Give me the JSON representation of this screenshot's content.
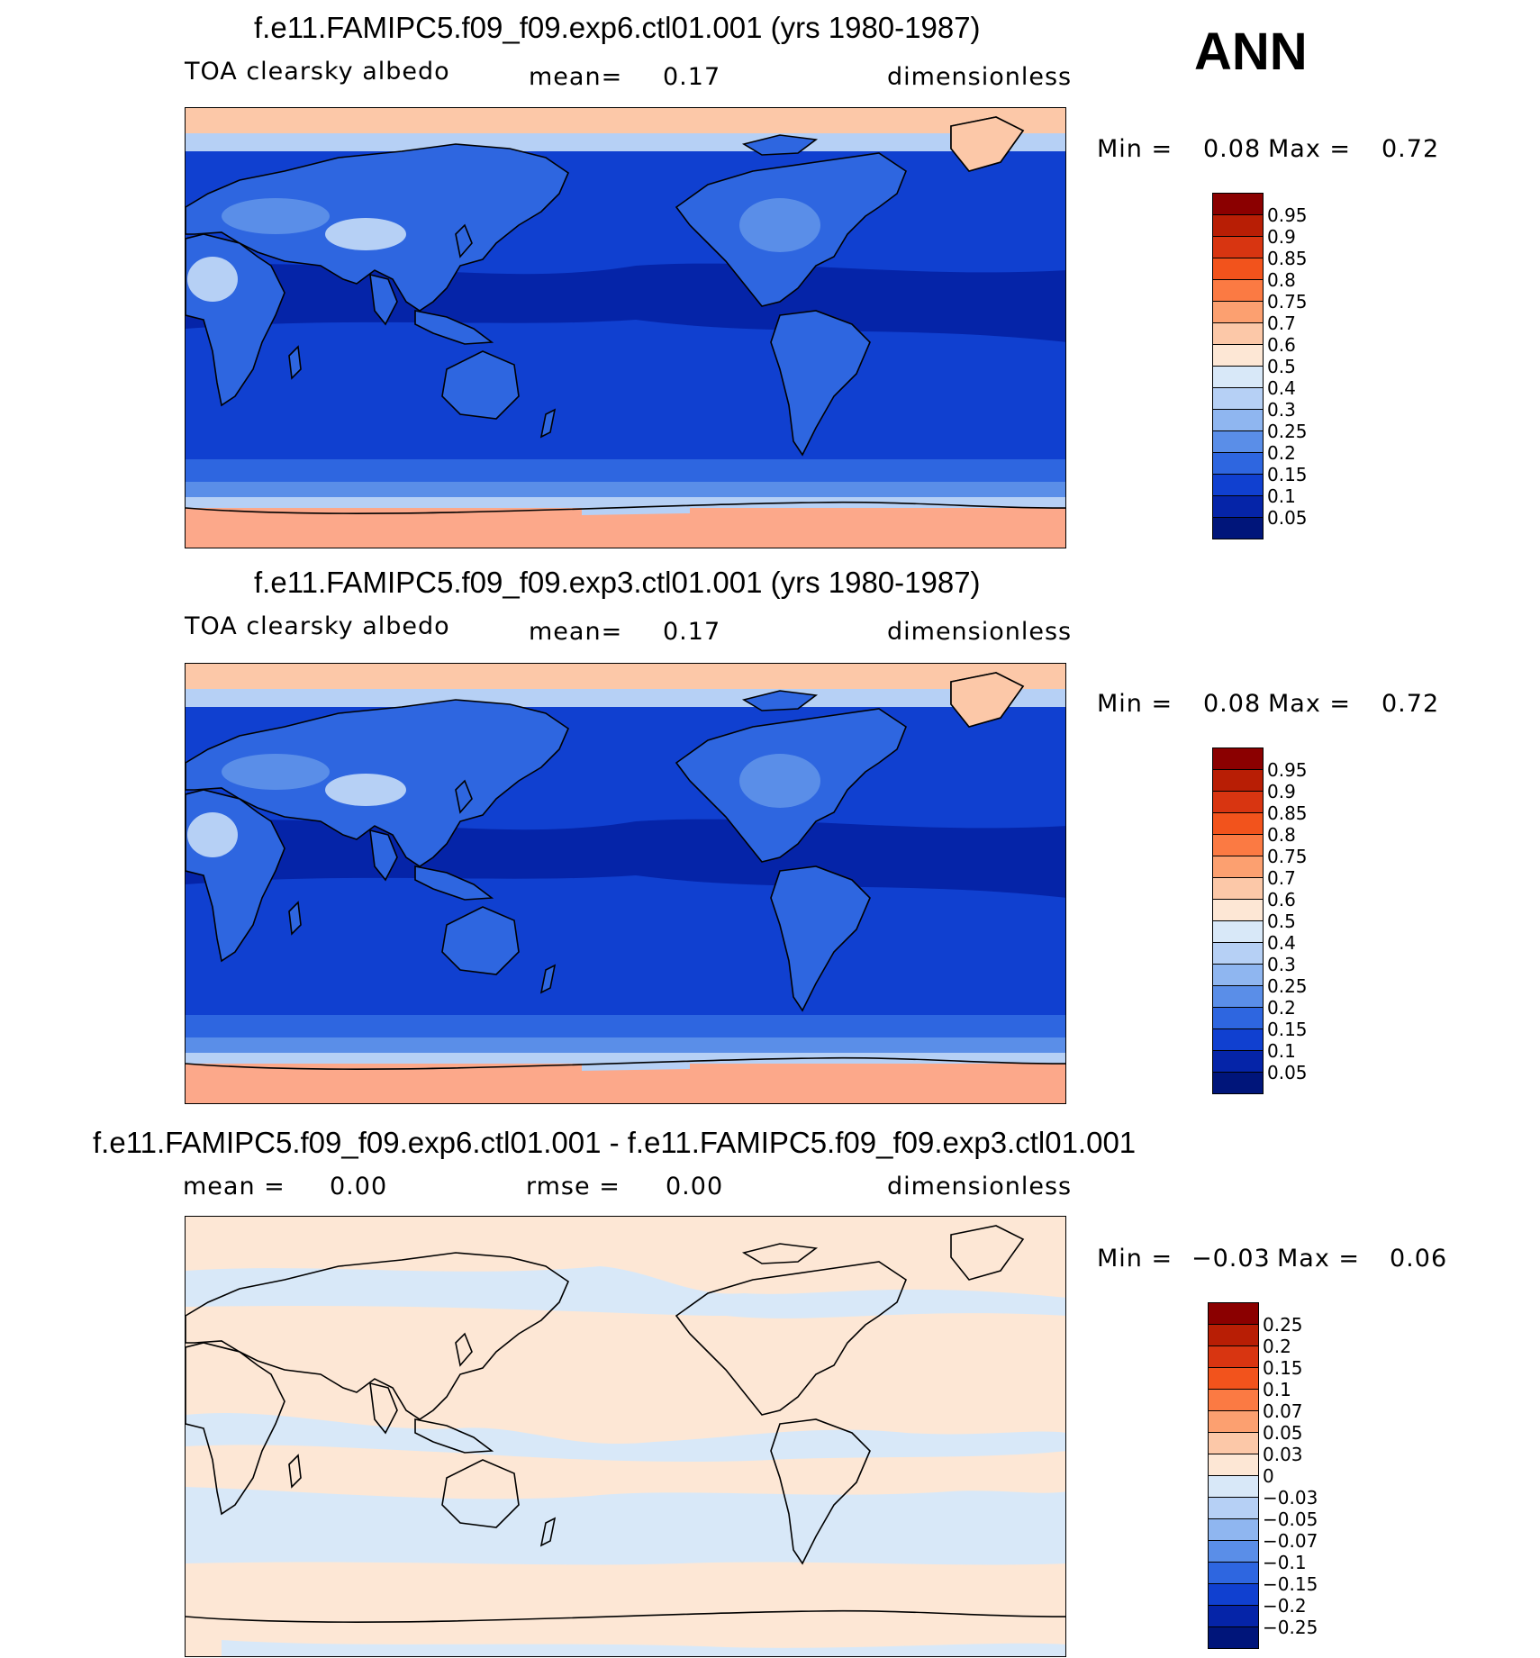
{
  "season": "ANN",
  "panels": [
    {
      "title": "f.e11.FAMIPC5.f09_f09.exp6.ctl01.001 (yrs 1980-1987)",
      "left_label": "TOA clearsky albedo",
      "mid_label": "mean=",
      "mid_value": "0.17",
      "right_label": "dimensionless",
      "min_label": "Min =",
      "min_value": "0.08",
      "max_label": "Max =",
      "max_value": "0.72",
      "colorbar_labels": [
        "0.95",
        "0.9",
        "0.85",
        "0.8",
        "0.75",
        "0.7",
        "0.6",
        "0.5",
        "0.4",
        "0.3",
        "0.25",
        "0.2",
        "0.15",
        "0.1",
        "0.05"
      ]
    },
    {
      "title": "f.e11.FAMIPC5.f09_f09.exp3.ctl01.001 (yrs 1980-1987)",
      "left_label": "TOA clearsky albedo",
      "mid_label": "mean=",
      "mid_value": "0.17",
      "right_label": "dimensionless",
      "min_label": "Min =",
      "min_value": "0.08",
      "max_label": "Max =",
      "max_value": "0.72",
      "colorbar_labels": [
        "0.95",
        "0.9",
        "0.85",
        "0.8",
        "0.75",
        "0.7",
        "0.6",
        "0.5",
        "0.4",
        "0.3",
        "0.25",
        "0.2",
        "0.15",
        "0.1",
        "0.05"
      ]
    },
    {
      "title": "f.e11.FAMIPC5.f09_f09.exp6.ctl01.001 - f.e11.FAMIPC5.f09_f09.exp3.ctl01.001",
      "left_label": "mean =",
      "left_value": "0.00",
      "mid_label": "rmse =",
      "mid_value": "0.00",
      "right_label": "dimensionless",
      "min_label": "Min =",
      "min_value": "−0.03",
      "max_label": "Max =",
      "max_value": "0.06",
      "colorbar_labels": [
        "0.25",
        "0.2",
        "0.15",
        "0.1",
        "0.07",
        "0.05",
        "0.03",
        "0",
        "−0.03",
        "−0.05",
        "−0.07",
        "−0.1",
        "−0.15",
        "−0.2",
        "−0.25"
      ]
    }
  ],
  "colorbar_colors": [
    "#8b0000",
    "#b81e05",
    "#d83511",
    "#f2531c",
    "#fb7a43",
    "#fca070",
    "#fcc8a8",
    "#fde7d5",
    "#d8e8f8",
    "#b6d0f5",
    "#8fb6f0",
    "#5a8ee8",
    "#2e66e0",
    "#1040d0",
    "#0524a8",
    "#00157a"
  ],
  "map_colors": {
    "polar_high": "#fca88a",
    "polar_mid": "#fcc8a8",
    "light_blue": "#b6d0f5",
    "mid_blue": "#5a8ee8",
    "ocean_blue": "#1040d0",
    "deep_blue": "#0524a8",
    "land_blue": "#2e66e0",
    "diff_pos": "#fde7d5",
    "diff_neg": "#d8e8f8",
    "coast": "#000000"
  }
}
